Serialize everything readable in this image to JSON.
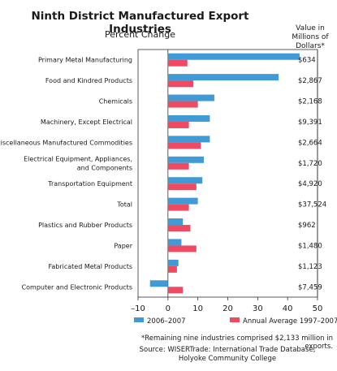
{
  "chart_data": {
    "type": "bar",
    "orientation": "horizontal",
    "title": "Ninth District Manufactured Export Industries",
    "subtitle": "Percent Change",
    "value_header": [
      "Value in",
      "Millions of",
      "Dollars*"
    ],
    "categories": [
      [
        "Primary Metal Manufacturing"
      ],
      [
        "Food and Kindred Products"
      ],
      [
        "Chemicals"
      ],
      [
        "Machinery, Except Electrical"
      ],
      [
        "Miscellaneous Manufactured Commodities"
      ],
      [
        "Electrical Equipment, Appliances,",
        "and Components"
      ],
      [
        "Transportation Equipment"
      ],
      [
        "Total"
      ],
      [
        "Plastics and Rubber Products"
      ],
      [
        "Paper"
      ],
      [
        "Fabricated Metal Products"
      ],
      [
        "Computer and Electronic Products"
      ]
    ],
    "values_text": [
      "$634",
      "$2,867",
      "$2,168",
      "$9,391",
      "$2,664",
      "$1,720",
      "$4,920",
      "$37,524",
      "$962",
      "$1,480",
      "$1,123",
      "$7,459"
    ],
    "series": [
      {
        "name": "2006–2007",
        "color": "#3f9ad6",
        "values": [
          44,
          37,
          15.5,
          14,
          14,
          12,
          11.5,
          10,
          5,
          4.5,
          3.5,
          -6
        ]
      },
      {
        "name": "Annual Average 1997–2007",
        "color": "#ee4b63",
        "values": [
          6.5,
          8.5,
          10,
          7,
          11,
          7,
          9.5,
          7,
          7.5,
          9.5,
          3,
          5
        ]
      }
    ],
    "xlim": [
      -10,
      50
    ],
    "xticks": [
      -10,
      0,
      10,
      20,
      30,
      40,
      50
    ],
    "xtick_labels": [
      "–10",
      "0",
      "10",
      "20",
      "30",
      "40",
      "50"
    ],
    "grid": false,
    "legend": "bottom"
  },
  "footnote": "*Remaining nine industries comprised $2,133 million in exports.",
  "source": [
    "Source: WISERTrade: International Trade Database,",
    "Holyoke Community College"
  ]
}
